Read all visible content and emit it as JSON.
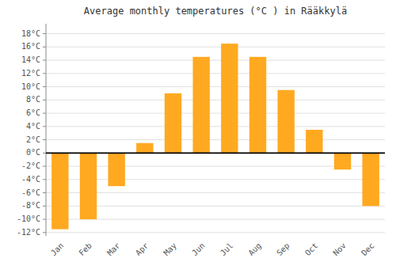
{
  "chart_data": {
    "type": "bar",
    "title": "Average monthly temperatures (°C ) in Rääkkylä",
    "categories": [
      "Jan",
      "Feb",
      "Mar",
      "Apr",
      "May",
      "Jun",
      "Jul",
      "Aug",
      "Sep",
      "Oct",
      "Nov",
      "Dec"
    ],
    "values": [
      -11.5,
      -10.0,
      -5.0,
      1.5,
      9.0,
      14.5,
      16.5,
      14.5,
      9.5,
      3.5,
      -2.5,
      -8.0
    ],
    "color": "#FFA920",
    "ylim": [
      -12.5,
      19.5
    ],
    "yticks": [
      {
        "value": 18,
        "label": "18°C"
      },
      {
        "value": 16,
        "label": "16°C"
      },
      {
        "value": 14,
        "label": "14°C"
      },
      {
        "value": 12,
        "label": "12°C"
      },
      {
        "value": 10,
        "label": "10°C"
      },
      {
        "value": 8,
        "label": "8°C"
      },
      {
        "value": 6,
        "label": "6°C"
      },
      {
        "value": 4,
        "label": "4°C"
      },
      {
        "value": 2,
        "label": "2°C"
      },
      {
        "value": 0,
        "label": "0°C"
      },
      {
        "value": -2,
        "label": "-2°C"
      },
      {
        "value": -4,
        "label": "-4°C"
      },
      {
        "value": -6,
        "label": "-6°C"
      },
      {
        "value": -8,
        "label": "-8°C"
      },
      {
        "value": -10,
        "label": "-10°C"
      },
      {
        "value": -12,
        "label": "-12°C"
      }
    ],
    "grid": true
  }
}
